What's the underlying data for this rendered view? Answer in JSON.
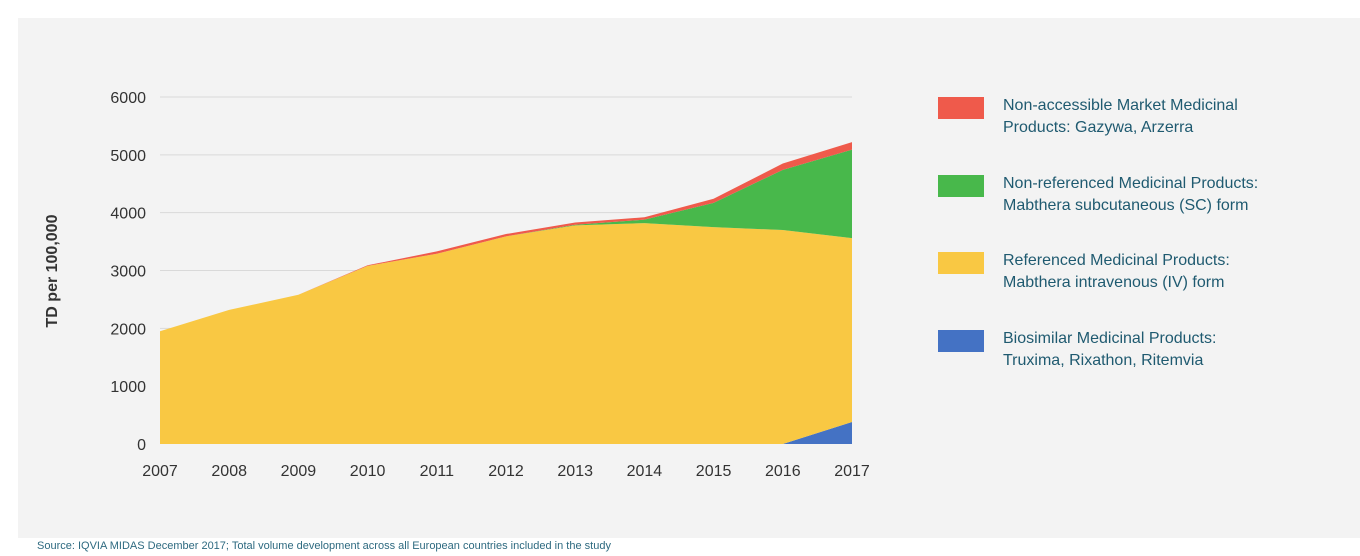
{
  "source_note": "Source: IQVIA MIDAS December 2017; Total volume development across all European countries included in the study",
  "chart_data": {
    "type": "area",
    "stacked": true,
    "ylabel": "TD per 100,000",
    "xlabel": "",
    "title": "",
    "x": [
      "2007",
      "2008",
      "2009",
      "2010",
      "2011",
      "2012",
      "2013",
      "2014",
      "2015",
      "2016",
      "2017"
    ],
    "ylim": [
      0,
      6000
    ],
    "yticks": [
      0,
      1000,
      2000,
      3000,
      4000,
      5000,
      6000
    ],
    "grid": true,
    "legend_position": "right",
    "series": [
      {
        "name": "Biosimilar Medicinal Products: Truxima, Rixathon, Ritemvia",
        "legend_lines": [
          "Biosimilar Medicinal Products:",
          "Truxima, Rixathon, Ritemvia"
        ],
        "color": "#4472c4",
        "values": [
          0,
          0,
          0,
          0,
          0,
          0,
          0,
          0,
          0,
          0,
          380
        ]
      },
      {
        "name": "Referenced Medicinal Products: Mabthera intravenous (IV) form",
        "legend_lines": [
          "Referenced Medicinal Products:",
          "Mabthera intravenous (IV) form"
        ],
        "color": "#f9c843",
        "values": [
          1950,
          2320,
          2580,
          3080,
          3290,
          3590,
          3780,
          3820,
          3750,
          3700,
          3180
        ]
      },
      {
        "name": "Non-referenced Medicinal Products: Mabthera subcutaneous (SC) form",
        "legend_lines": [
          "Non-referenced Medicinal Products:",
          "Mabthera subcutaneous (SC) form"
        ],
        "color": "#48b84b",
        "values": [
          0,
          0,
          0,
          0,
          0,
          0,
          10,
          60,
          420,
          1040,
          1530
        ]
      },
      {
        "name": "Non-accessible Market Medicinal Products: Gazywa, Arzerra",
        "legend_lines": [
          "Non-accessible Market Medicinal",
          "Products: Gazywa, Arzerra"
        ],
        "color": "#ef5a4b",
        "values": [
          0,
          0,
          0,
          10,
          40,
          40,
          40,
          40,
          70,
          110,
          130
        ]
      }
    ]
  }
}
